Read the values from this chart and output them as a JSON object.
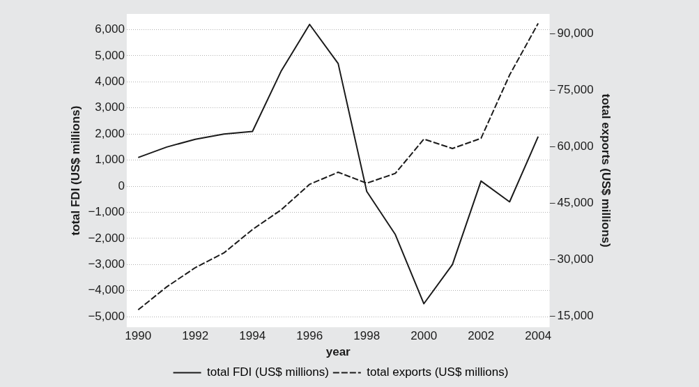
{
  "chart_data": {
    "type": "line",
    "xlabel": "year",
    "ylabel": "total FDI (US$ millions)",
    "y2label": "total exports (US$ millions)",
    "x": [
      1990,
      1991,
      1992,
      1993,
      1994,
      1995,
      1996,
      1997,
      1998,
      1999,
      2000,
      2001,
      2002,
      2003,
      2004
    ],
    "series": [
      {
        "name": "total FDI (US$ millions)",
        "color": "#1a1a1a",
        "line_style": "solid",
        "values": [
          1100,
          1500,
          1800,
          2000,
          2100,
          4400,
          6200,
          4700,
          -200,
          -1850,
          -4500,
          -3000,
          200,
          -600,
          1900
        ]
      },
      {
        "name": "total exports (US$ millions)",
        "color": "#1a1a1a",
        "line_style": "dashed",
        "axis": "y2",
        "values": [
          16700,
          22800,
          27900,
          31800,
          38000,
          43200,
          50000,
          53200,
          50300,
          52900,
          62000,
          59500,
          62200,
          79000,
          92700
        ]
      }
    ],
    "xlim": [
      1989.6,
      2004.4
    ],
    "xticks": [
      1990,
      1992,
      1994,
      1996,
      1998,
      2000,
      2002,
      2004
    ],
    "ylim": [
      -5400,
      6600
    ],
    "yticks": [
      {
        "value": -5000,
        "label": "−5,000"
      },
      {
        "value": -4000,
        "label": "−4,000"
      },
      {
        "value": -3000,
        "label": "−3,000"
      },
      {
        "value": -2000,
        "label": "−2,000"
      },
      {
        "value": -1000,
        "label": "−1,000"
      },
      0,
      {
        "value": 1000,
        "label": "1,000"
      },
      {
        "value": 2000,
        "label": "2,000"
      },
      {
        "value": 3000,
        "label": "3,000"
      },
      {
        "value": 4000,
        "label": "4,000"
      },
      {
        "value": 5000,
        "label": "5,000"
      },
      {
        "value": 6000,
        "label": "6,000"
      }
    ],
    "y2lim": [
      12100,
      95200
    ],
    "y2ticks": [
      {
        "value": 15000,
        "label": "15,000"
      },
      {
        "value": 30000,
        "label": "30,000"
      },
      {
        "value": 45000,
        "label": "45,000"
      },
      {
        "value": 60000,
        "label": "60,000"
      },
      {
        "value": 75000,
        "label": "75,000"
      },
      {
        "value": 90000,
        "label": "90,000"
      }
    ],
    "grid": "y",
    "legend": "bottom",
    "marker": "none"
  }
}
